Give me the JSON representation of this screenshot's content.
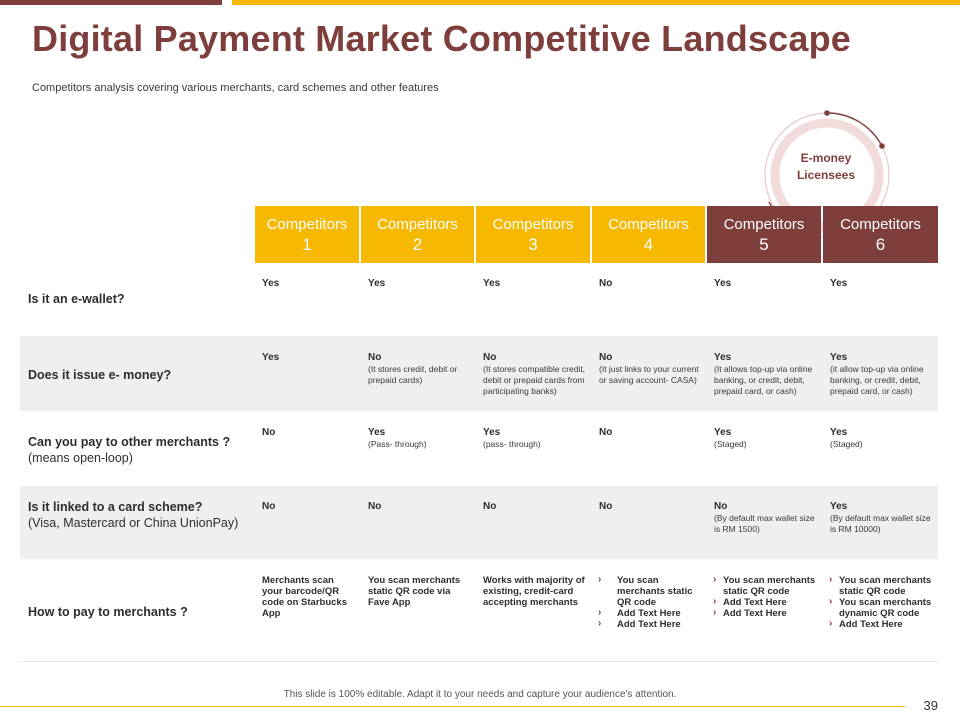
{
  "title": "Digital Payment Market Competitive Landscape",
  "subtitle": "Competitors analysis covering various merchants, card schemes and other features",
  "emoney": {
    "line1": "E-money",
    "line2": "Licensees"
  },
  "colors": {
    "maroon": "#7e3f3c",
    "gold": "#f6b800",
    "band": "#efefef"
  },
  "competitors": [
    {
      "label": "Competitors",
      "number": "1"
    },
    {
      "label": "Competitors",
      "number": "2"
    },
    {
      "label": "Competitors",
      "number": "3"
    },
    {
      "label": "Competitors",
      "number": "4"
    },
    {
      "label": "Competitors",
      "number": "5"
    },
    {
      "label": "Competitors",
      "number": "6"
    }
  ],
  "rows": [
    {
      "label": "Is it an e-wallet?",
      "sub": "",
      "cells": [
        {
          "main": "Yes",
          "detail": ""
        },
        {
          "main": "Yes",
          "detail": ""
        },
        {
          "main": "Yes",
          "detail": ""
        },
        {
          "main": "No",
          "detail": ""
        },
        {
          "main": "Yes",
          "detail": ""
        },
        {
          "main": "Yes",
          "detail": ""
        }
      ]
    },
    {
      "label": "Does it issue e- money?",
      "sub": "",
      "cells": [
        {
          "main": "Yes",
          "detail": ""
        },
        {
          "main": "No",
          "detail": "(It stores credit, debit or prepaid cards)"
        },
        {
          "main": "No",
          "detail": "(It stores compatible credit, debit or prepaid cards from participating banks)"
        },
        {
          "main": "No",
          "detail": "(It just links to your current or saving account- CASA)"
        },
        {
          "main": "Yes",
          "detail": "(It allows top-up  via online banking, or credit, debit, prepaid card, or cash)"
        },
        {
          "main": "Yes",
          "detail": "(it allow  top-up via online banking, or credit, debit, prepaid card, or cash)"
        }
      ]
    },
    {
      "label": "Can you pay to other merchants ?",
      "sub": "(means open-loop)",
      "cells": [
        {
          "main": "No",
          "detail": ""
        },
        {
          "main": "Yes",
          "detail": "(Pass- through)"
        },
        {
          "main": "Yes",
          "detail": "(pass- through)"
        },
        {
          "main": "No",
          "detail": ""
        },
        {
          "main": "Yes",
          "detail": "(Staged)"
        },
        {
          "main": "Yes",
          "detail": "(Staged)"
        }
      ]
    },
    {
      "label": "Is it linked to a card scheme?",
      "sub": "(Visa, Mastercard or China UnionPay)",
      "cells": [
        {
          "main": "No",
          "detail": ""
        },
        {
          "main": "No",
          "detail": ""
        },
        {
          "main": "No",
          "detail": ""
        },
        {
          "main": "No",
          "detail": ""
        },
        {
          "main": "No",
          "detail": "(By default max wallet size is RM 1500)"
        },
        {
          "main": "Yes",
          "detail": "(By default max wallet size is RM 10000)"
        }
      ]
    },
    {
      "label": "How to pay to merchants ?",
      "sub": "",
      "cells": [
        {
          "text": "Merchants scan your barcode/QR code on Starbucks App"
        },
        {
          "text": "You scan merchants static QR code via Fave App"
        },
        {
          "text": "Works with majority of existing, credit-card accepting merchants"
        },
        {
          "bullets": [
            "You scan merchants static QR code",
            "Add Text Here",
            "Add Text Here"
          ]
        },
        {
          "bullets": [
            "You scan merchants static QR code",
            "Add Text Here",
            "Add Text Here"
          ]
        },
        {
          "bullets": [
            "You scan merchants static QR code",
            "You scan merchants dynamic QR code",
            "Add Text Here"
          ]
        }
      ]
    }
  ],
  "footer": "This slide is 100% editable. Adapt it to your needs and capture your audience's attention.",
  "page_number": "39"
}
